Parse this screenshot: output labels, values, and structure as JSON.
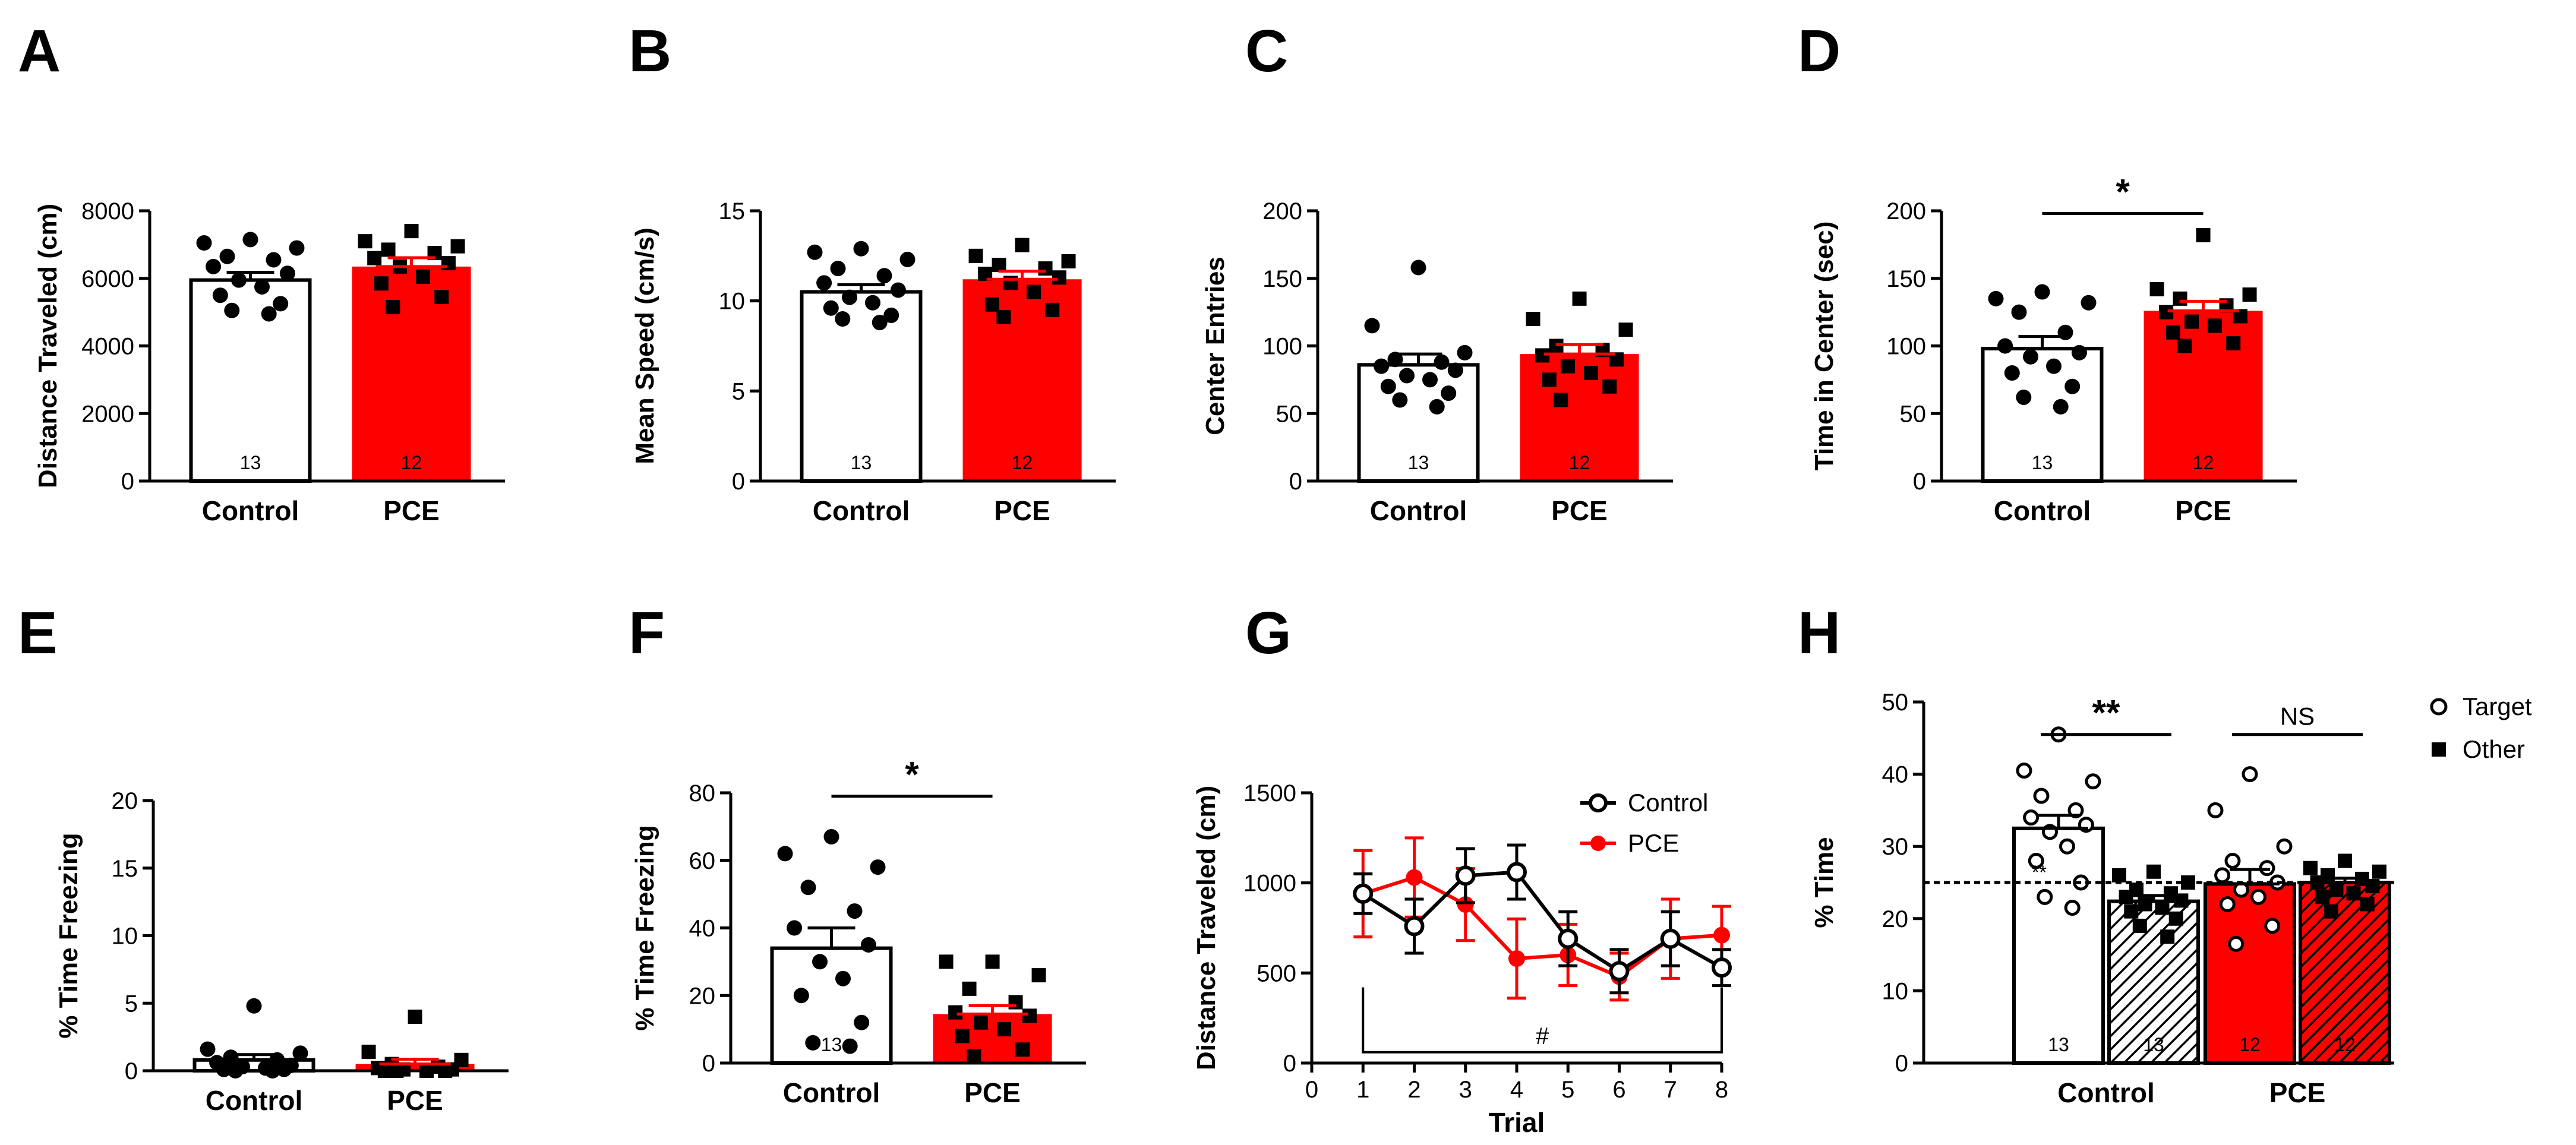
{
  "colors": {
    "pce": "#ff0000",
    "control": "#000000",
    "bar_control_fill": "#ffffff"
  },
  "chart_data": [
    {
      "panel": "A",
      "type": "bar",
      "ylabel": "Distance Traveled (cm)",
      "ylim": [
        0,
        8000
      ],
      "yticks": [
        0,
        2000,
        4000,
        6000,
        8000
      ],
      "categories": [
        "Control",
        "PCE"
      ],
      "means": [
        5950,
        6350
      ],
      "sem": [
        230,
        260
      ],
      "n": [
        "13",
        "12"
      ],
      "points": [
        [
          7150,
          7050,
          6900,
          6650,
          6550,
          6350,
          6150,
          5950,
          5750,
          5500,
          5250,
          5050,
          4950
        ],
        [
          7400,
          7100,
          6950,
          6850,
          6750,
          6600,
          6450,
          6350,
          6050,
          5850,
          5450,
          5150
        ]
      ]
    },
    {
      "panel": "B",
      "type": "bar",
      "ylabel": "Mean Speed (cm/s)",
      "ylim": [
        0,
        15
      ],
      "yticks": [
        0,
        5,
        10,
        15
      ],
      "categories": [
        "Control",
        "PCE"
      ],
      "means": [
        10.5,
        11.2
      ],
      "sem": [
        0.4,
        0.45
      ],
      "n": [
        "13",
        "12"
      ],
      "points": [
        [
          12.9,
          12.7,
          12.3,
          11.8,
          11.4,
          11.0,
          10.6,
          10.2,
          9.9,
          9.6,
          9.2,
          9.0,
          8.8
        ],
        [
          13.1,
          12.5,
          12.2,
          12.0,
          11.8,
          11.5,
          11.3,
          11.0,
          10.5,
          9.8,
          9.5,
          9.1
        ]
      ]
    },
    {
      "panel": "C",
      "type": "bar",
      "ylabel": "Center Entries",
      "ylim": [
        0,
        200
      ],
      "yticks": [
        0,
        50,
        100,
        150,
        200
      ],
      "categories": [
        "Control",
        "PCE"
      ],
      "means": [
        86,
        94
      ],
      "sem": [
        8,
        7
      ],
      "n": [
        "13",
        "12"
      ],
      "points": [
        [
          158,
          115,
          95,
          90,
          88,
          85,
          82,
          78,
          75,
          70,
          65,
          60,
          55
        ],
        [
          135,
          120,
          112,
          100,
          97,
          93,
          90,
          85,
          80,
          75,
          70,
          60
        ]
      ]
    },
    {
      "panel": "D",
      "type": "bar",
      "ylabel": "Time in Center (sec)",
      "ylim": [
        0,
        200
      ],
      "yticks": [
        0,
        50,
        100,
        150,
        200
      ],
      "categories": [
        "Control",
        "PCE"
      ],
      "means": [
        98,
        126
      ],
      "sem": [
        9,
        7
      ],
      "n": [
        "13",
        "12"
      ],
      "points": [
        [
          140,
          135,
          132,
          125,
          110,
          100,
          95,
          92,
          85,
          80,
          70,
          62,
          55
        ],
        [
          182,
          142,
          138,
          135,
          130,
          125,
          122,
          118,
          115,
          110,
          102,
          100
        ]
      ],
      "significance": {
        "label": "*",
        "y": 198
      }
    },
    {
      "panel": "E",
      "type": "bar",
      "ylabel": "% Time Freezing",
      "ylim": [
        0,
        20
      ],
      "yticks": [
        0,
        5,
        10,
        15,
        20
      ],
      "categories": [
        "Control",
        "PCE"
      ],
      "means": [
        0.8,
        0.5
      ],
      "sem": [
        0.4,
        0.35
      ],
      "n": [
        "",
        ""
      ],
      "points": [
        [
          4.8,
          1.6,
          1.3,
          1.0,
          0.8,
          0.6,
          0.4,
          0.3,
          0.2,
          0.1,
          0.1,
          0.0,
          0.0
        ],
        [
          4.0,
          1.4,
          0.8,
          0.5,
          0.3,
          0.2,
          0.1,
          0.1,
          0.0,
          0.0,
          0.0,
          0.0
        ]
      ]
    },
    {
      "panel": "F",
      "type": "bar",
      "ylabel": "% Time Freezing",
      "ylim": [
        0,
        80
      ],
      "yticks": [
        0,
        20,
        40,
        60,
        80
      ],
      "categories": [
        "Control",
        "PCE"
      ],
      "means": [
        34,
        14.5
      ],
      "sem": [
        6,
        2.5
      ],
      "n": [
        "13",
        ""
      ],
      "points": [
        [
          67,
          62,
          58,
          52,
          45,
          40,
          35,
          30,
          25,
          20,
          12,
          6,
          5
        ],
        [
          30,
          30,
          26,
          22,
          18,
          15,
          14,
          12,
          10,
          8,
          4,
          2
        ]
      ],
      "significance": {
        "label": "*",
        "y": 79
      }
    },
    {
      "panel": "G",
      "type": "line",
      "xlabel": "Trial",
      "ylabel": "Distance Traveled (cm)",
      "xlim": [
        0,
        8
      ],
      "ylim": [
        0,
        1500
      ],
      "xticks": [
        0,
        1,
        2,
        3,
        4,
        5,
        6,
        7,
        8
      ],
      "yticks": [
        0,
        500,
        1000,
        1500
      ],
      "series": [
        {
          "name": "Control",
          "x": [
            1,
            2,
            3,
            4,
            5,
            6,
            7,
            8
          ],
          "values": [
            940,
            760,
            1040,
            1060,
            690,
            510,
            690,
            530
          ],
          "sem": [
            110,
            150,
            150,
            150,
            150,
            120,
            150,
            100
          ]
        },
        {
          "name": "PCE",
          "x": [
            1,
            2,
            3,
            4,
            5,
            6,
            7,
            8
          ],
          "values": [
            940,
            1030,
            880,
            580,
            600,
            480,
            690,
            710
          ],
          "sem": [
            240,
            220,
            200,
            220,
            170,
            130,
            220,
            160
          ]
        }
      ],
      "annotation": {
        "label": "#",
        "x_from": 1,
        "x_to": 8
      }
    },
    {
      "panel": "H",
      "type": "bar",
      "ylabel": "% Time",
      "ylim": [
        0,
        50
      ],
      "yticks": [
        0,
        10,
        20,
        30,
        40,
        50
      ],
      "categories": [
        "Control",
        "PCE"
      ],
      "series": [
        {
          "name": "Target",
          "means": [
            32.5,
            24.8
          ],
          "sem": [
            1.8,
            2.0
          ],
          "n": [
            "13",
            "12"
          ],
          "points": [
            [
              45.5,
              40.5,
              39,
              37,
              35,
              34,
              33,
              32,
              30,
              28,
              25,
              23,
              21.5
            ],
            [
              40,
              35,
              30,
              28,
              27,
              26,
              25,
              24,
              23,
              22,
              19,
              16.5
            ]
          ]
        },
        {
          "name": "Other",
          "means": [
            22.4,
            25.0
          ],
          "sem": [
            0.8,
            0.6
          ],
          "n": [
            "13",
            "12"
          ],
          "points": [
            [
              26.5,
              26,
              25,
              24,
              23.5,
              23,
              22.5,
              22,
              21.5,
              21,
              20,
              19,
              17.5
            ],
            [
              28,
              27,
              26.5,
              26,
              25.5,
              25,
              24.5,
              24,
              23.5,
              23,
              22,
              21
            ]
          ]
        }
      ],
      "reference_line": 25,
      "significance": [
        {
          "label": "**",
          "group": "Control",
          "y": 45.5
        },
        {
          "label": "NS",
          "group": "PCE",
          "y": 45.5
        }
      ],
      "extra_text": "**",
      "legend": [
        "Target",
        "Other"
      ]
    }
  ]
}
